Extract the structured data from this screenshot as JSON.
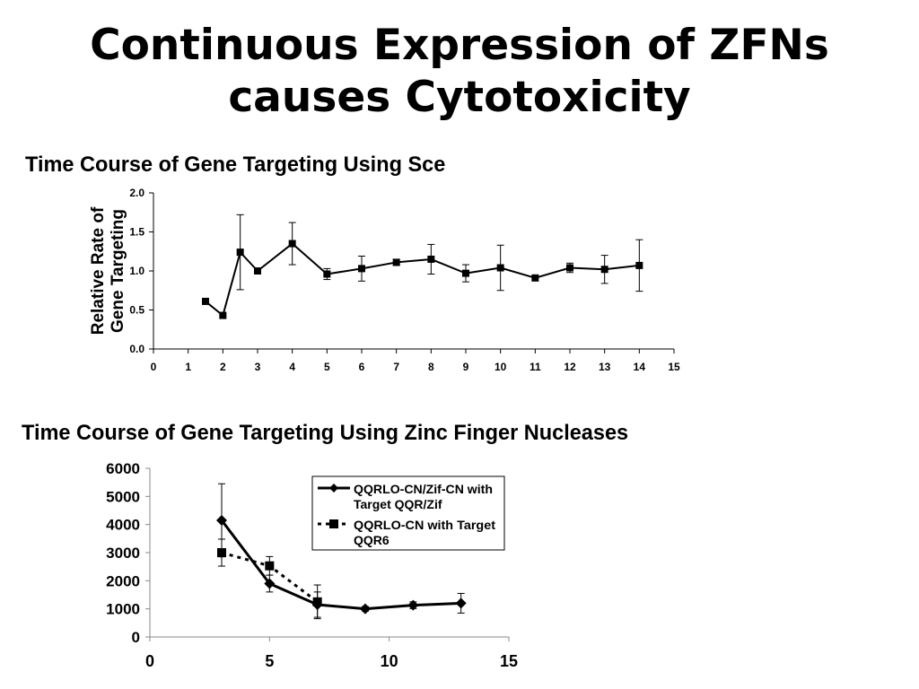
{
  "slide": {
    "title_line1": "Continuous Expression of ZFNs",
    "title_line2": "causes Cytotoxicity"
  },
  "chart_data": [
    {
      "type": "line",
      "title": "Time Course of Gene Targeting Using Sce",
      "ylabel_line1": "Relative Rate of",
      "ylabel_line2": "Gene Targeting",
      "xlabel": "",
      "xlim": [
        0,
        15
      ],
      "ylim": [
        0,
        2.0
      ],
      "xticks": [
        "0",
        "1",
        "2",
        "3",
        "4",
        "5",
        "6",
        "7",
        "8",
        "9",
        "10",
        "11",
        "12",
        "13",
        "14",
        "15"
      ],
      "yticks": [
        "0.0",
        "0.5",
        "1.0",
        "1.5",
        "2.0"
      ],
      "grid": false,
      "legend": "none",
      "series": [
        {
          "marker": "square",
          "line": "solid",
          "color": "#000000",
          "points": [
            {
              "x": 1.5,
              "y": 0.61,
              "err": 0
            },
            {
              "x": 2.0,
              "y": 0.43,
              "err": 0
            },
            {
              "x": 2.5,
              "y": 1.24,
              "err": 0.48
            },
            {
              "x": 3.0,
              "y": 1.0,
              "err": 0
            },
            {
              "x": 4.0,
              "y": 1.35,
              "err": 0.27
            },
            {
              "x": 5.0,
              "y": 0.96,
              "err": 0.07
            },
            {
              "x": 6.0,
              "y": 1.03,
              "err": 0.16
            },
            {
              "x": 7.0,
              "y": 1.11,
              "err": 0.04
            },
            {
              "x": 8.0,
              "y": 1.15,
              "err": 0.19
            },
            {
              "x": 9.0,
              "y": 0.97,
              "err": 0.11
            },
            {
              "x": 10.0,
              "y": 1.04,
              "err": 0.29
            },
            {
              "x": 11.0,
              "y": 0.91,
              "err": 0
            },
            {
              "x": 12.0,
              "y": 1.04,
              "err": 0.06
            },
            {
              "x": 13.0,
              "y": 1.02,
              "err": 0.18
            },
            {
              "x": 14.0,
              "y": 1.07,
              "err": 0.33
            }
          ]
        }
      ]
    },
    {
      "type": "line",
      "title": "Time Course of Gene Targeting Using Zinc Finger Nucleases",
      "xlabel": "",
      "ylabel": "",
      "xlim": [
        0,
        15
      ],
      "ylim": [
        0,
        6000
      ],
      "xticks": [
        "0",
        "5",
        "10",
        "15"
      ],
      "yticks": [
        "0",
        "1000",
        "2000",
        "3000",
        "4000",
        "5000",
        "6000"
      ],
      "grid": false,
      "legend": "top-right",
      "series": [
        {
          "name_line1": "QQRLO-CN/Zif-CN with",
          "name_line2": "Target QQR/Zif",
          "marker": "diamond",
          "line": "solid",
          "color": "#000000",
          "points": [
            {
              "x": 3,
              "y": 4150,
              "err": 1300
            },
            {
              "x": 5,
              "y": 1900,
              "err": 300
            },
            {
              "x": 7,
              "y": 1150,
              "err": 450
            },
            {
              "x": 9,
              "y": 1000,
              "err": 80
            },
            {
              "x": 11,
              "y": 1130,
              "err": 120
            },
            {
              "x": 13,
              "y": 1200,
              "err": 350
            }
          ]
        },
        {
          "name_line1": "QQRLO-CN with Target",
          "name_line2": "QQR6",
          "marker": "square",
          "line": "dotted",
          "color": "#000000",
          "points": [
            {
              "x": 3,
              "y": 3000,
              "err": 480
            },
            {
              "x": 5,
              "y": 2530,
              "err": 330
            },
            {
              "x": 7,
              "y": 1250,
              "err": 600
            }
          ]
        }
      ]
    }
  ]
}
